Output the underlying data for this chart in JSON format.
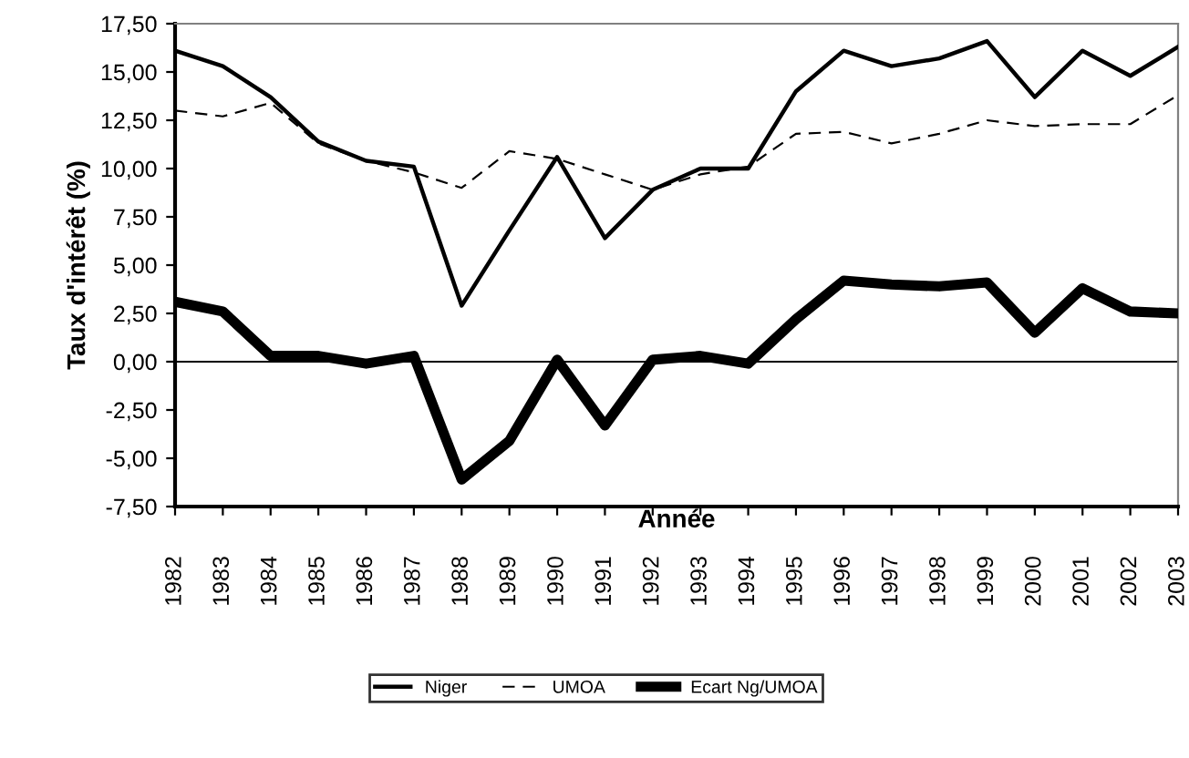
{
  "chart_data": {
    "type": "line",
    "xlabel": "Année",
    "ylabel": "Taux d'intérêt (%)",
    "categories": [
      "1982",
      "1983",
      "1984",
      "1985",
      "1986",
      "1987",
      "1988",
      "1989",
      "1990",
      "1991",
      "1992",
      "1993",
      "1994",
      "1995",
      "1996",
      "1997",
      "1998",
      "1999",
      "2000",
      "2001",
      "2002",
      "2003"
    ],
    "series": [
      {
        "name": "Niger",
        "color": "#000000",
        "line_style": "solid",
        "values": [
          16.1,
          15.3,
          13.7,
          11.4,
          10.4,
          10.1,
          2.9,
          6.8,
          10.6,
          6.4,
          8.9,
          10.0,
          10.0,
          14.0,
          16.1,
          15.3,
          15.7,
          16.6,
          13.7,
          16.1,
          14.8,
          16.3
        ]
      },
      {
        "name": "UMOA",
        "color": "#000000",
        "line_style": "dashed",
        "values": [
          13.0,
          12.7,
          13.4,
          11.3,
          10.4,
          9.8,
          9.0,
          10.9,
          10.5,
          9.7,
          8.9,
          9.7,
          10.1,
          11.8,
          11.9,
          11.3,
          11.8,
          12.5,
          12.2,
          12.3,
          12.3,
          13.8
        ]
      },
      {
        "name": "Ecart Ng/UMOA",
        "color": "#000000",
        "line_style": "solid",
        "values": [
          3.1,
          2.6,
          0.3,
          0.3,
          -0.1,
          0.3,
          -6.1,
          -4.1,
          0.1,
          -3.3,
          0.1,
          0.3,
          -0.1,
          2.2,
          4.2,
          4.0,
          3.9,
          4.1,
          1.5,
          3.8,
          2.6,
          2.5
        ]
      }
    ],
    "ylim": [
      -7.5,
      17.5
    ],
    "yticks": [
      {
        "value": -7.5,
        "label": "-7,50"
      },
      {
        "value": -5,
        "label": "-5,00"
      },
      {
        "value": -2.5,
        "label": "-2,50"
      },
      {
        "value": 0,
        "label": "0,00"
      },
      {
        "value": 2.5,
        "label": "2,50"
      },
      {
        "value": 5,
        "label": "5,00"
      },
      {
        "value": 7.5,
        "label": "7,50"
      },
      {
        "value": 10,
        "label": "10,00"
      },
      {
        "value": 12.5,
        "label": "12,50"
      },
      {
        "value": 15,
        "label": "15,00"
      },
      {
        "value": 17.5,
        "label": "17,50"
      }
    ],
    "ref_lines": [
      {
        "axis": "y",
        "value": 0,
        "color": "#000000"
      }
    ],
    "grid": false,
    "legend": "bottom",
    "marker": "none"
  }
}
